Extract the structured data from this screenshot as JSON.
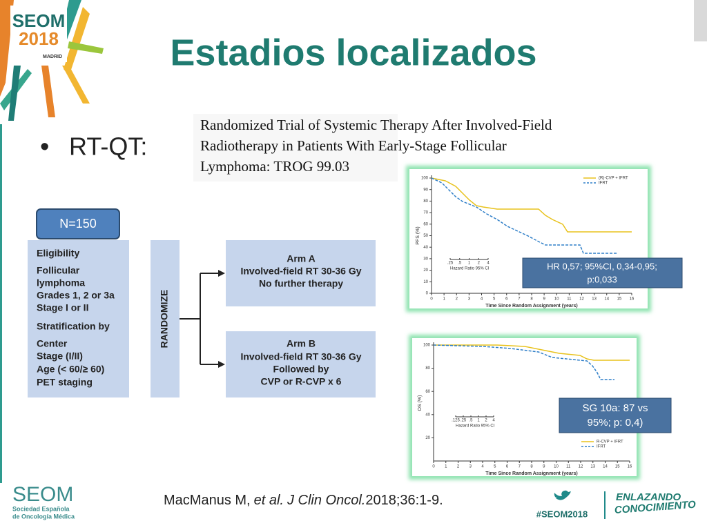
{
  "header": {
    "logo_title": "SEOM",
    "logo_year": "2018",
    "logo_city": "MADRID",
    "title": "Estadios localizados"
  },
  "bullet": "RT-QT:",
  "paper_title": [
    "Randomized Trial of Systemic Therapy After Involved-Field",
    "Radiotherapy in Patients With Early-Stage Follicular",
    "Lymphoma: TROG 99.03"
  ],
  "n_box": "N=150",
  "flowchart": {
    "eligibility": {
      "heading": "Eligibility",
      "items": [
        "Follicular",
        "lymphoma",
        "Grades 1, 2 or 3a",
        "Stage I or II"
      ]
    },
    "stratification": {
      "heading": "Stratification by",
      "items": [
        "Center",
        "Stage (I/II)",
        "Age (< 60/≥ 60)",
        "PET staging"
      ]
    },
    "randomize": "RANDOMIZE",
    "arm_a": [
      "Arm A",
      "Involved-field RT 30-36 Gy",
      "No further therapy"
    ],
    "arm_b": [
      "Arm B",
      "Involved-field RT 30-36 Gy",
      "Followed by",
      "CVP or R-CVP x 6"
    ]
  },
  "pfs_chart": {
    "y_label": "PFS (%)",
    "x_label": "Time Since Random Assignment (years)",
    "xlim": [
      0,
      16
    ],
    "ylim": [
      0,
      100
    ],
    "yticks": [
      0,
      10,
      20,
      30,
      40,
      50,
      60,
      70,
      80,
      90,
      100
    ],
    "xticks": [
      0,
      1,
      2,
      3,
      4,
      5,
      6,
      7,
      8,
      9,
      10,
      11,
      12,
      13,
      14,
      15,
      16
    ],
    "legend": [
      "(R)-CVP + IFRT",
      "IFRT"
    ],
    "forest_label": "Hazard Ratio 95% CI",
    "forest_ticks": [
      {
        "value": 0.25,
        "label": ".25"
      },
      {
        "value": 0.5,
        "label": ".5"
      },
      1,
      2,
      4
    ],
    "callout": [
      "HR 0,57; 95%CI, 0,34-0,95;",
      "p:0,033"
    ]
  },
  "os_chart": {
    "y_label": "OS (%)",
    "x_label": "Time Since Random Assignment (years)",
    "xlim": [
      0,
      16
    ],
    "ylim": [
      0,
      100
    ],
    "yticks": [
      20,
      40,
      60,
      80,
      100
    ],
    "xticks": [
      0,
      1,
      2,
      3,
      4,
      5,
      6,
      7,
      8,
      9,
      10,
      11,
      12,
      13,
      14,
      15,
      16
    ],
    "legend": [
      "R-CVP + IFRT",
      "IFRT"
    ],
    "forest_label": "Hazard Ratio 95% CI",
    "forest_ticks": [
      {
        "value": 0.125,
        "label": ".125"
      },
      {
        "value": 0.25,
        "label": ".25"
      },
      {
        "value": 0.5,
        "label": ".5"
      },
      1,
      2,
      4
    ],
    "callout": [
      "SG 10a: 87 vs",
      "95%; p: 0,4)"
    ]
  },
  "citation": {
    "author": "MacManus M,",
    "etal": "et al.",
    "journal": "J Clin Oncol.",
    "ref": "2018;36:1-9."
  },
  "footer": {
    "org": "SEOM",
    "org_line1": "Sociedad Española",
    "org_line2": "de Oncología Médica",
    "hashtag": "#SEOM2018",
    "slogan": [
      "ENLAZANDO",
      "CONOCIMIENTO"
    ]
  }
}
